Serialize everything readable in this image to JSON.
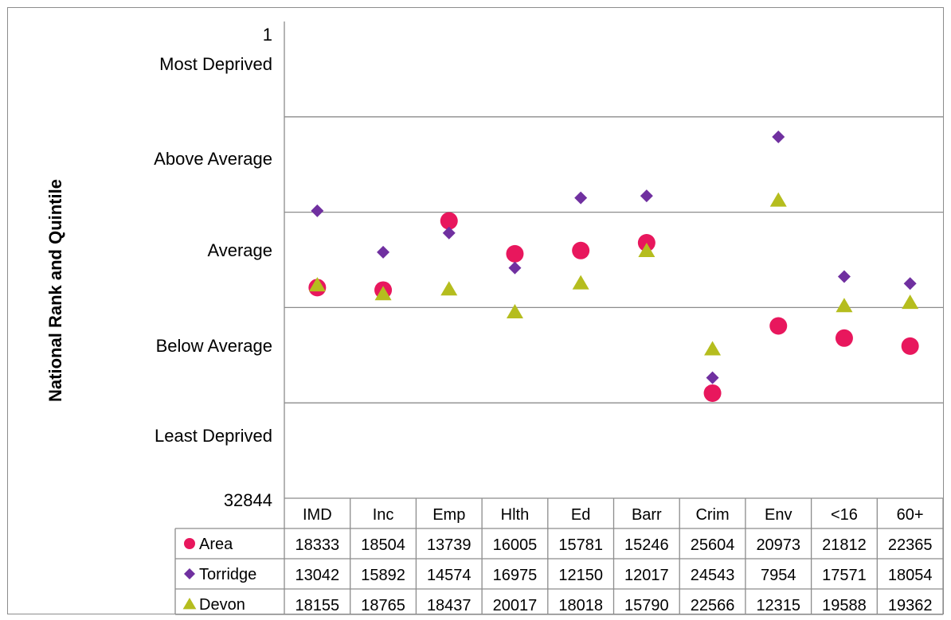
{
  "chart_data": {
    "type": "scatter",
    "ylabel": "National Rank and Quintile",
    "y_range": [
      1,
      32844
    ],
    "y_reversed": true,
    "y_top_label": "1",
    "y_bottom_label": "32844",
    "bands": [
      "Most Deprived",
      "Above Average",
      "Average",
      "Below Average",
      "Least Deprived"
    ],
    "grid": true,
    "categories": [
      "IMD",
      "Inc",
      "Emp",
      "Hlth",
      "Ed",
      "Barr",
      "Crim",
      "Env",
      "<16",
      "60+"
    ],
    "series": [
      {
        "name": "Area",
        "marker": "circle",
        "color": "#e8175d",
        "values": [
          18333,
          18504,
          13739,
          16005,
          15781,
          15246,
          25604,
          20973,
          21812,
          22365
        ]
      },
      {
        "name": "Torridge",
        "marker": "diamond",
        "color": "#7030a0",
        "values": [
          13042,
          15892,
          14574,
          16975,
          12150,
          12017,
          24543,
          7954,
          17571,
          18054
        ]
      },
      {
        "name": "Devon",
        "marker": "triangle",
        "color": "#b5bd1e",
        "values": [
          18155,
          18765,
          18437,
          20017,
          18018,
          15790,
          22566,
          12315,
          19588,
          19362
        ]
      }
    ],
    "legend": "data table below the plot"
  }
}
